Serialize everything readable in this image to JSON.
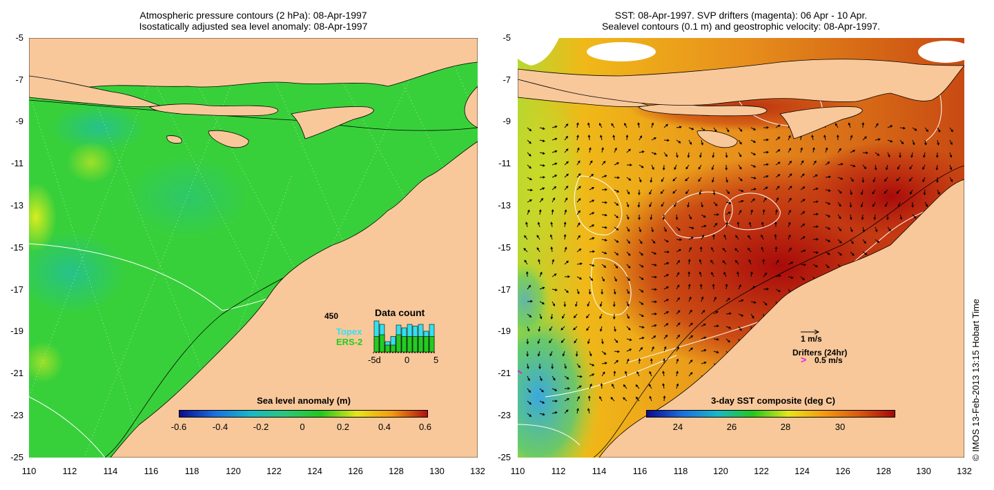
{
  "left_panel": {
    "title_line1": "Atmospheric pressure contours (2 hPa): 08-Apr-1997",
    "title_line2": "Isostatically adjusted sea level anomaly: 08-Apr-1997",
    "colorbar": {
      "title": "Sea level anomaly (m)",
      "labels": [
        "-0.6",
        "-0.4",
        "-0.2",
        "0",
        "0.2",
        "0.4",
        "0.6"
      ],
      "colors": [
        "#0b0b8c",
        "#1a6fe0",
        "#18b8c8",
        "#2cc77a",
        "#22c81c",
        "#e6e61a",
        "#f59a10",
        "#b01010"
      ]
    },
    "data_count": {
      "title": "Data count",
      "max_label": "450",
      "topex_label": "Topex",
      "ers2_label": "ERS-2",
      "x_labels": [
        "-5d",
        "0",
        "5"
      ],
      "topex_color": "#33e0f0",
      "ers2_color": "#22cc22",
      "bars_total": [
        0.9,
        0.8,
        0.3,
        0.45,
        0.78,
        0.7,
        0.8,
        0.75,
        0.8,
        0.6,
        0.8
      ],
      "bars_ers2": [
        0.45,
        0.5,
        0.2,
        0.2,
        0.5,
        0.45,
        0.45,
        0.45,
        0.45,
        0.45,
        0.45
      ]
    },
    "colors": {
      "sea": "#38d03a",
      "land": "#f8c89a"
    }
  },
  "right_panel": {
    "title_line1": "SST: 08-Apr-1997. SVP drifters (magenta): 06 Apr - 10 Apr.",
    "title_line2": "Sealevel contours (0.1 m) and geostrophic velocity: 08-Apr-1997.",
    "colorbar": {
      "title": "3-day SST composite (deg C)",
      "labels": [
        "24",
        "26",
        "28",
        "30"
      ],
      "colors": [
        "#0b0b8c",
        "#1a6fe0",
        "#18b8c8",
        "#22c81c",
        "#e6e61a",
        "#f59a10",
        "#d85a10",
        "#a50808"
      ]
    },
    "velocity_legend": "1 m/s",
    "drifter_legend": "Drifters (24hr)",
    "drifter_speed": "0.5 m/s",
    "drifter_color": "#e020e0",
    "colors": {
      "land": "#f8c89a",
      "warm": "#b30e0e",
      "mid": "#f2a010",
      "cool": "#3ab0e0"
    }
  },
  "axes": {
    "y_ticks": [
      "-5",
      "-7",
      "-9",
      "-11",
      "-13",
      "-15",
      "-17",
      "-19",
      "-21",
      "-23",
      "-25"
    ],
    "x_ticks": [
      "110",
      "112",
      "114",
      "116",
      "118",
      "120",
      "122",
      "124",
      "126",
      "128",
      "130",
      "132"
    ],
    "lat_range": [
      -25,
      -5
    ],
    "lon_range": [
      110,
      132
    ]
  },
  "credit": "© IMOS 13-Feb-2013 13:15 Hobart Time"
}
